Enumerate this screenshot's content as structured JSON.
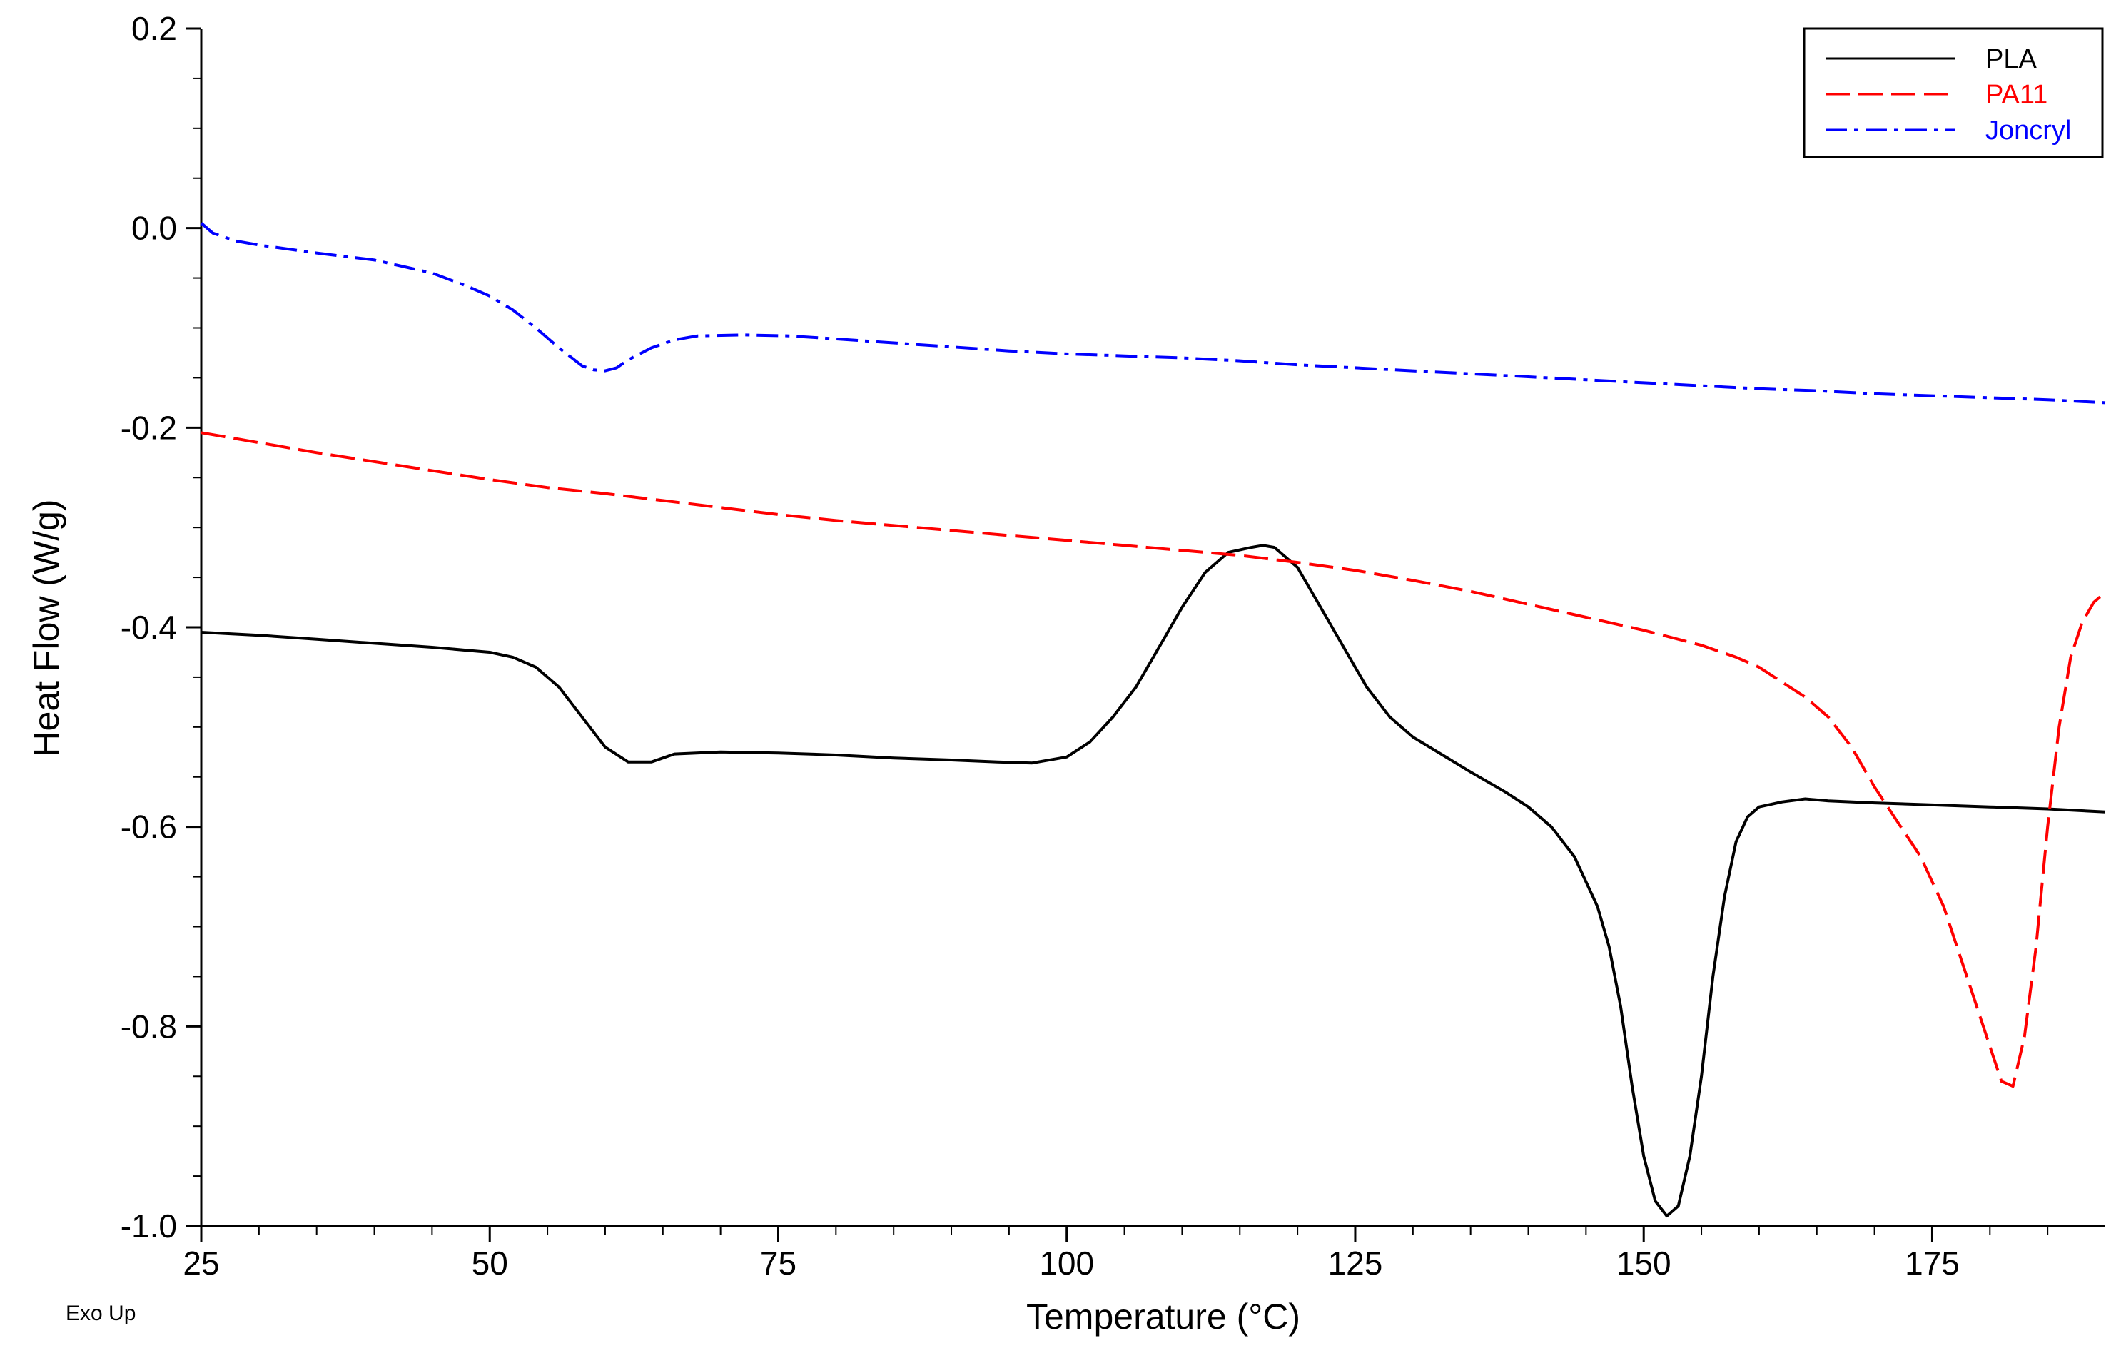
{
  "chart_data": {
    "type": "line",
    "title": "",
    "xlabel": "Temperature (°C)",
    "ylabel": "Heat Flow (W/g)",
    "note": "Exo Up",
    "xlim": [
      25,
      190
    ],
    "ylim": [
      -1.0,
      0.2
    ],
    "x_ticks": [
      25,
      50,
      75,
      100,
      125,
      150,
      175
    ],
    "x_tick_labels": [
      "25",
      "50",
      "75",
      "100",
      "125",
      "150",
      "175"
    ],
    "y_ticks": [
      0.2,
      0.0,
      -0.2,
      -0.4,
      -0.6,
      -0.8,
      -1.0
    ],
    "y_tick_labels": [
      "0.2",
      "0.0",
      "-0.2",
      "-0.4",
      "-0.6",
      "-0.8",
      "-1.0"
    ],
    "legend_position": "top-right",
    "series": [
      {
        "name": "PLA",
        "color": "#000000",
        "dash": "solid",
        "points": [
          [
            25,
            -0.405
          ],
          [
            30,
            -0.408
          ],
          [
            35,
            -0.412
          ],
          [
            40,
            -0.416
          ],
          [
            45,
            -0.42
          ],
          [
            48,
            -0.423
          ],
          [
            50,
            -0.425
          ],
          [
            52,
            -0.43
          ],
          [
            54,
            -0.44
          ],
          [
            56,
            -0.46
          ],
          [
            58,
            -0.49
          ],
          [
            60,
            -0.52
          ],
          [
            62,
            -0.535
          ],
          [
            64,
            -0.535
          ],
          [
            66,
            -0.527
          ],
          [
            70,
            -0.525
          ],
          [
            75,
            -0.526
          ],
          [
            80,
            -0.528
          ],
          [
            85,
            -0.531
          ],
          [
            90,
            -0.533
          ],
          [
            94,
            -0.535
          ],
          [
            97,
            -0.536
          ],
          [
            100,
            -0.53
          ],
          [
            102,
            -0.515
          ],
          [
            104,
            -0.49
          ],
          [
            106,
            -0.46
          ],
          [
            108,
            -0.42
          ],
          [
            110,
            -0.38
          ],
          [
            112,
            -0.345
          ],
          [
            114,
            -0.325
          ],
          [
            116,
            -0.32
          ],
          [
            117,
            -0.318
          ],
          [
            118,
            -0.32
          ],
          [
            120,
            -0.34
          ],
          [
            122,
            -0.38
          ],
          [
            124,
            -0.42
          ],
          [
            126,
            -0.46
          ],
          [
            128,
            -0.49
          ],
          [
            130,
            -0.51
          ],
          [
            135,
            -0.545
          ],
          [
            138,
            -0.565
          ],
          [
            140,
            -0.58
          ],
          [
            142,
            -0.6
          ],
          [
            144,
            -0.63
          ],
          [
            146,
            -0.68
          ],
          [
            147,
            -0.72
          ],
          [
            148,
            -0.78
          ],
          [
            149,
            -0.86
          ],
          [
            150,
            -0.93
          ],
          [
            151,
            -0.975
          ],
          [
            152,
            -0.99
          ],
          [
            153,
            -0.98
          ],
          [
            154,
            -0.93
          ],
          [
            155,
            -0.85
          ],
          [
            156,
            -0.75
          ],
          [
            157,
            -0.67
          ],
          [
            158,
            -0.615
          ],
          [
            159,
            -0.59
          ],
          [
            160,
            -0.58
          ],
          [
            162,
            -0.575
          ],
          [
            164,
            -0.572
          ],
          [
            166,
            -0.574
          ],
          [
            170,
            -0.576
          ],
          [
            175,
            -0.578
          ],
          [
            180,
            -0.58
          ],
          [
            185,
            -0.582
          ],
          [
            190,
            -0.585
          ]
        ]
      },
      {
        "name": "PA11",
        "color": "#ff0000",
        "dash": "dash",
        "points": [
          [
            25,
            -0.205
          ],
          [
            30,
            -0.215
          ],
          [
            35,
            -0.225
          ],
          [
            40,
            -0.234
          ],
          [
            45,
            -0.243
          ],
          [
            50,
            -0.252
          ],
          [
            55,
            -0.26
          ],
          [
            60,
            -0.266
          ],
          [
            65,
            -0.273
          ],
          [
            70,
            -0.28
          ],
          [
            75,
            -0.287
          ],
          [
            80,
            -0.293
          ],
          [
            85,
            -0.298
          ],
          [
            90,
            -0.303
          ],
          [
            95,
            -0.308
          ],
          [
            100,
            -0.313
          ],
          [
            105,
            -0.318
          ],
          [
            110,
            -0.323
          ],
          [
            115,
            -0.328
          ],
          [
            120,
            -0.335
          ],
          [
            125,
            -0.343
          ],
          [
            130,
            -0.353
          ],
          [
            135,
            -0.364
          ],
          [
            140,
            -0.377
          ],
          [
            145,
            -0.39
          ],
          [
            150,
            -0.403
          ],
          [
            155,
            -0.418
          ],
          [
            158,
            -0.43
          ],
          [
            160,
            -0.44
          ],
          [
            162,
            -0.455
          ],
          [
            164,
            -0.47
          ],
          [
            166,
            -0.49
          ],
          [
            168,
            -0.52
          ],
          [
            170,
            -0.56
          ],
          [
            172,
            -0.595
          ],
          [
            174,
            -0.63
          ],
          [
            176,
            -0.68
          ],
          [
            178,
            -0.75
          ],
          [
            180,
            -0.82
          ],
          [
            181,
            -0.855
          ],
          [
            182,
            -0.86
          ],
          [
            183,
            -0.81
          ],
          [
            184,
            -0.72
          ],
          [
            185,
            -0.6
          ],
          [
            186,
            -0.5
          ],
          [
            187,
            -0.43
          ],
          [
            188,
            -0.395
          ],
          [
            189,
            -0.375
          ],
          [
            190,
            -0.365
          ]
        ]
      },
      {
        "name": "Joncryl",
        "color": "#0000ff",
        "dash": "dashdot",
        "points": [
          [
            25,
            0.005
          ],
          [
            26,
            -0.005
          ],
          [
            28,
            -0.013
          ],
          [
            30,
            -0.017
          ],
          [
            35,
            -0.025
          ],
          [
            40,
            -0.032
          ],
          [
            45,
            -0.045
          ],
          [
            48,
            -0.058
          ],
          [
            50,
            -0.068
          ],
          [
            52,
            -0.082
          ],
          [
            54,
            -0.1
          ],
          [
            56,
            -0.12
          ],
          [
            58,
            -0.138
          ],
          [
            59,
            -0.142
          ],
          [
            60,
            -0.143
          ],
          [
            61,
            -0.14
          ],
          [
            62,
            -0.132
          ],
          [
            64,
            -0.12
          ],
          [
            66,
            -0.112
          ],
          [
            68,
            -0.108
          ],
          [
            72,
            -0.107
          ],
          [
            76,
            -0.108
          ],
          [
            80,
            -0.111
          ],
          [
            85,
            -0.115
          ],
          [
            90,
            -0.119
          ],
          [
            95,
            -0.123
          ],
          [
            100,
            -0.126
          ],
          [
            105,
            -0.128
          ],
          [
            110,
            -0.13
          ],
          [
            115,
            -0.133
          ],
          [
            120,
            -0.137
          ],
          [
            125,
            -0.14
          ],
          [
            130,
            -0.143
          ],
          [
            135,
            -0.146
          ],
          [
            140,
            -0.149
          ],
          [
            145,
            -0.152
          ],
          [
            150,
            -0.155
          ],
          [
            155,
            -0.158
          ],
          [
            160,
            -0.161
          ],
          [
            165,
            -0.163
          ],
          [
            170,
            -0.166
          ],
          [
            175,
            -0.168
          ],
          [
            180,
            -0.17
          ],
          [
            185,
            -0.172
          ],
          [
            190,
            -0.175
          ]
        ]
      }
    ]
  }
}
